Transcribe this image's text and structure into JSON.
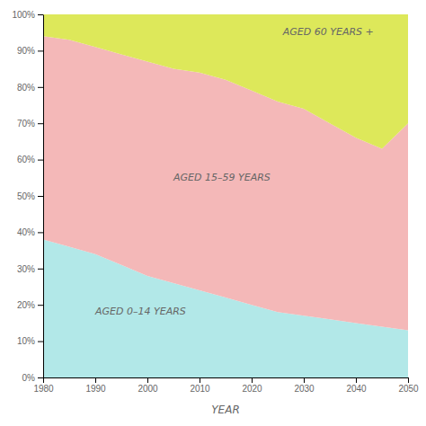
{
  "chart_data": {
    "type": "area",
    "stacked": true,
    "xlabel": "YEAR",
    "x": [
      1980,
      1985,
      1990,
      1995,
      2000,
      2005,
      2010,
      2015,
      2020,
      2025,
      2030,
      2035,
      2040,
      2045,
      2050
    ],
    "series": [
      {
        "color": "#b2e8e8",
        "values": [
          38,
          36,
          34,
          31,
          28,
          26,
          24,
          22,
          20,
          18,
          17,
          16,
          15,
          14,
          13
        ]
      },
      {
        "color": "#f4b8b8",
        "values": [
          56,
          57,
          57,
          58,
          59,
          59,
          60,
          60,
          59,
          58,
          57,
          54,
          51,
          49,
          57
        ]
      },
      {
        "color": "#dde85a",
        "values": [
          6,
          7,
          9,
          11,
          13,
          15,
          16,
          18,
          21,
          24,
          26,
          30,
          34,
          37,
          30
        ]
      }
    ],
    "annotations": [
      {
        "text": "AGED 0–14 YEARS",
        "x": 1990,
        "y": 18
      },
      {
        "text": "AGED 15–59 YEARS",
        "x": 2005,
        "y": 55
      },
      {
        "text": "AGED 60 YEARS +",
        "x": 2026,
        "y": 95
      }
    ],
    "xlim": [
      1980,
      2050
    ],
    "ylim": [
      0,
      100
    ],
    "xticks": [
      1980,
      1990,
      2000,
      2010,
      2020,
      2030,
      2040,
      2050
    ],
    "yticks": [
      {
        "value": 0,
        "label": "0%"
      },
      {
        "value": 10,
        "label": "10%"
      },
      {
        "value": 20,
        "label": "20%"
      },
      {
        "value": 30,
        "label": "30%"
      },
      {
        "value": 40,
        "label": "40%"
      },
      {
        "value": 50,
        "label": "50%"
      },
      {
        "value": 60,
        "label": "60%"
      },
      {
        "value": 70,
        "label": "70%"
      },
      {
        "value": 80,
        "label": "80%"
      },
      {
        "value": 90,
        "label": "90%"
      },
      {
        "value": 100,
        "label": "100%"
      }
    ],
    "grid": false
  }
}
